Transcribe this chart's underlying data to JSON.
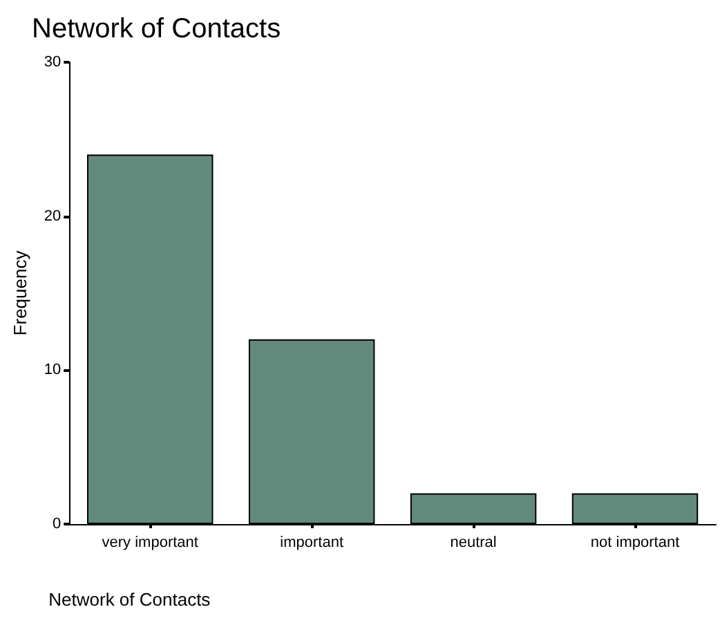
{
  "chart_data": {
    "type": "bar",
    "title": "Network of Contacts",
    "xlabel": "Network of Contacts",
    "ylabel": "Frequency",
    "categories": [
      "very important",
      "important",
      "neutral",
      "not important"
    ],
    "values": [
      24,
      12,
      2,
      2
    ],
    "color": "#628a7c",
    "ylim": [
      0,
      30
    ],
    "yticks": [
      0,
      10,
      20,
      30
    ],
    "grid": false
  }
}
